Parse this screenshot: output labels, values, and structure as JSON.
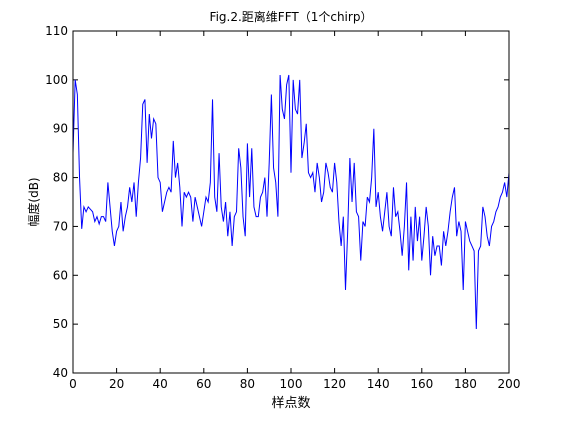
{
  "chart_data": {
    "type": "line",
    "title": "Fig.2.距离维FFT（1个chirp）",
    "xlabel": "样点数",
    "ylabel": "幅度(dB)",
    "xlim": [
      0,
      200
    ],
    "ylim": [
      40,
      110
    ],
    "xticks": [
      0,
      20,
      40,
      60,
      80,
      100,
      120,
      140,
      160,
      180,
      200
    ],
    "yticks": [
      40,
      50,
      60,
      70,
      80,
      90,
      100,
      110
    ],
    "grid": false,
    "line_color": "#0000ff",
    "series": [
      {
        "x": [
          0,
          1,
          2,
          3,
          4,
          5,
          6,
          7,
          8,
          9,
          10,
          11,
          12,
          13,
          14,
          15,
          16,
          17,
          18,
          19,
          20,
          21,
          22,
          23,
          24,
          25,
          26,
          27,
          28,
          29,
          30,
          31,
          32,
          33,
          34,
          35,
          36,
          37,
          38,
          39,
          40,
          41,
          42,
          43,
          44,
          45,
          46,
          47,
          48,
          49,
          50,
          51,
          52,
          53,
          54,
          55,
          56,
          57,
          58,
          59,
          60,
          61,
          62,
          63,
          64,
          65,
          66,
          67,
          68,
          69,
          70,
          71,
          72,
          73,
          74,
          75,
          76,
          77,
          78,
          79,
          80,
          81,
          82,
          83,
          84,
          85,
          86,
          87,
          88,
          89,
          90,
          91,
          92,
          93,
          94,
          95,
          96,
          97,
          98,
          99,
          100,
          101,
          102,
          103,
          104,
          105,
          106,
          107,
          108,
          109,
          110,
          111,
          112,
          113,
          114,
          115,
          116,
          117,
          118,
          119,
          120,
          121,
          122,
          123,
          124,
          125,
          126,
          127,
          128,
          129,
          130,
          131,
          132,
          133,
          134,
          135,
          136,
          137,
          138,
          139,
          140,
          141,
          142,
          143,
          144,
          145,
          146,
          147,
          148,
          149,
          150,
          151,
          152,
          153,
          154,
          155,
          156,
          157,
          158,
          159,
          160,
          161,
          162,
          163,
          164,
          165,
          166,
          167,
          168,
          169,
          170,
          171,
          172,
          173,
          174,
          175,
          176,
          177,
          178,
          179,
          180,
          181,
          182,
          183,
          184,
          185,
          186,
          187,
          188,
          189,
          190,
          191,
          192,
          193,
          194,
          195,
          196,
          197,
          198,
          199,
          200
        ],
        "values": [
          85,
          100,
          97,
          80,
          69.5,
          74,
          73,
          74,
          73.5,
          73,
          71,
          72,
          70.5,
          72,
          72,
          71,
          79,
          74,
          69,
          66,
          69,
          70,
          75,
          69,
          72,
          74,
          78,
          75,
          79,
          72,
          79,
          84,
          95,
          96,
          83,
          93,
          88,
          92,
          91,
          80,
          79,
          73,
          75,
          77,
          78,
          77,
          87.5,
          80,
          83,
          78,
          70,
          77,
          76,
          77,
          76,
          71,
          76,
          74,
          72,
          70,
          73,
          76,
          75,
          79,
          96,
          76,
          73,
          85,
          74,
          71,
          75,
          68,
          73,
          66,
          72,
          73,
          86,
          82,
          72,
          68,
          87,
          76,
          86,
          74,
          72,
          72,
          76,
          77,
          80,
          72,
          83,
          97,
          82,
          79,
          72,
          101,
          94,
          92,
          99,
          101,
          81,
          100,
          94,
          93,
          100,
          84,
          87,
          91,
          81,
          80,
          81,
          77,
          83,
          80,
          75,
          77,
          83,
          81,
          78,
          77,
          83,
          79,
          71,
          66,
          72,
          57,
          69,
          84,
          75,
          83,
          73,
          72,
          63,
          71,
          70,
          76,
          75,
          80,
          90,
          74,
          77,
          72,
          69,
          73,
          77,
          70,
          68,
          78,
          72,
          73,
          69,
          64,
          70,
          79,
          61,
          72,
          63,
          74,
          67,
          72,
          63,
          68,
          74,
          70,
          60,
          68,
          64,
          66,
          66,
          62,
          69,
          66,
          69,
          73,
          76,
          78,
          68,
          71,
          69,
          57,
          71,
          69,
          67,
          66,
          65,
          49,
          65,
          66,
          74,
          72,
          68,
          66,
          70,
          71,
          73,
          74,
          76,
          77,
          79,
          76,
          81
        ]
      }
    ]
  }
}
